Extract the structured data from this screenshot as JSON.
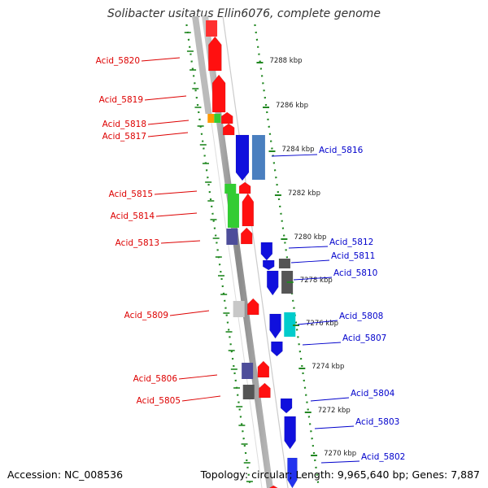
{
  "header": {
    "title": "Solibacter usitatus Ellin6076, complete genome"
  },
  "footer": {
    "accession": "Accession: NC_008536",
    "summary": "Topology: circular; Length: 9,965,640 bp; Genes: 7,887"
  },
  "colors": {
    "forward_label": "#dd0000",
    "reverse_label": "#0000cc",
    "backbone": "#888888",
    "dotted_ring": "#228822"
  },
  "ticks": [
    {
      "label": "7288 kbp"
    },
    {
      "label": "7286 kbp"
    },
    {
      "label": "7284 kbp"
    },
    {
      "label": "7282 kbp"
    },
    {
      "label": "7280 kbp"
    },
    {
      "label": "7278 kbp"
    },
    {
      "label": "7276 kbp"
    },
    {
      "label": "7274 kbp"
    },
    {
      "label": "7272 kbp"
    },
    {
      "label": "7270 kbp"
    }
  ],
  "genes_forward": [
    {
      "label": "Acid_5820"
    },
    {
      "label": "Acid_5819"
    },
    {
      "label": "Acid_5818"
    },
    {
      "label": "Acid_5817"
    },
    {
      "label": "Acid_5815"
    },
    {
      "label": "Acid_5814"
    },
    {
      "label": "Acid_5813"
    },
    {
      "label": "Acid_5809"
    },
    {
      "label": "Acid_5806"
    },
    {
      "label": "Acid_5805"
    }
  ],
  "genes_reverse": [
    {
      "label": "Acid_5816"
    },
    {
      "label": "Acid_5812"
    },
    {
      "label": "Acid_5811"
    },
    {
      "label": "Acid_5810"
    },
    {
      "label": "Acid_5808"
    },
    {
      "label": "Acid_5807"
    },
    {
      "label": "Acid_5804"
    },
    {
      "label": "Acid_5803"
    },
    {
      "label": "Acid_5802"
    }
  ]
}
